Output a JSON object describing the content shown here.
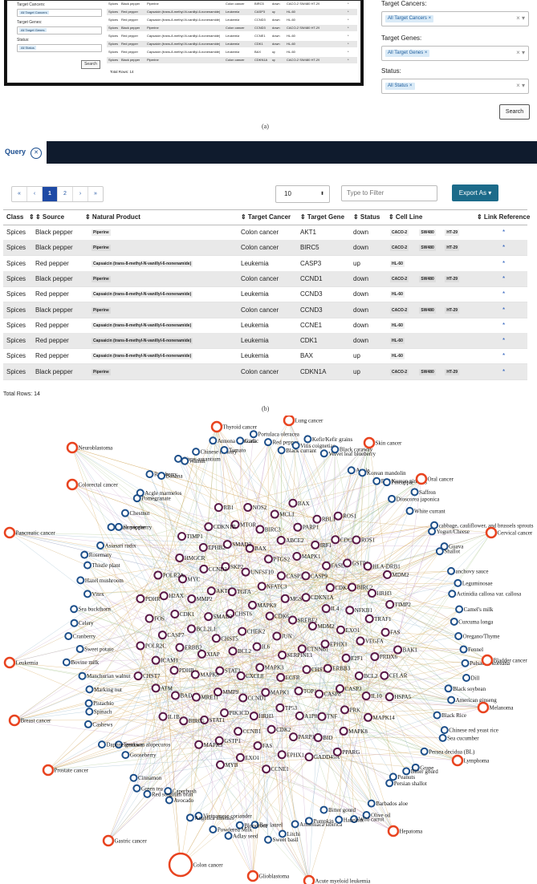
{
  "panel_a": {
    "mini_form": {
      "labels": [
        "Target Cancers:",
        "Target Genes:",
        "Status:"
      ],
      "chips": [
        "All Target Cancers",
        "All Target Genes",
        "All Status"
      ],
      "search": "Search"
    },
    "mini_rows": [
      [
        "Spices",
        "Black pepper",
        "Piperine",
        "Colon cancer",
        "BIRC5",
        "down",
        "CACO-2  SW480  HT-29"
      ],
      [
        "Spices",
        "Red pepper",
        "Capsaicin (trans-8-methyl-N-vanillyl-6-nonenamide)",
        "Leukemia",
        "CASP3",
        "up",
        "HL-60"
      ],
      [
        "Spices",
        "Red pepper",
        "Capsaicin (trans-8-methyl-N-vanillyl-6-nonenamide)",
        "Leukemia",
        "CCND3",
        "down",
        "HL-60"
      ],
      [
        "Spices",
        "Black pepper",
        "Piperine",
        "Colon cancer",
        "CCND3",
        "down",
        "CACO-2  SW480  HT-29"
      ],
      [
        "Spices",
        "Red pepper",
        "Capsaicin (trans-8-methyl-N-vanillyl-6-nonenamide)",
        "Leukemia",
        "CCNE1",
        "down",
        "HL-60"
      ],
      [
        "Spices",
        "Red pepper",
        "Capsaicin (trans-8-methyl-N-vanillyl-6-nonenamide)",
        "Leukemia",
        "CDK1",
        "down",
        "HL-60"
      ],
      [
        "Spices",
        "Red pepper",
        "Capsaicin (trans-8-methyl-N-vanillyl-6-nonenamide)",
        "Leukemia",
        "BAX",
        "up",
        "HL-60"
      ],
      [
        "Spices",
        "Black pepper",
        "Piperine",
        "Colon cancer",
        "CDKN1A",
        "up",
        "CACO-2  SW480  HT-29"
      ]
    ],
    "mini_total": "Total Rows: 14",
    "side_panel": {
      "target_cancers_label": "Target Cancers:",
      "target_cancers_chip": "All Target Cancers",
      "target_genes_label": "Target Genes:",
      "target_genes_chip": "All Target Genes",
      "status_label": "Status:",
      "status_chip": "All Status",
      "search_label": "Search"
    },
    "caption": "(a)"
  },
  "panel_b": {
    "tab_label": "Query",
    "pager": [
      "«",
      "‹",
      "1",
      "2",
      "›",
      "»"
    ],
    "page_size": "10",
    "filter_placeholder": "Type to Filter",
    "export_label": "Export As",
    "columns": [
      "Class",
      "Source",
      "Natural Product",
      "Target Cancer",
      "Target Gene",
      "Status",
      "Cell Line",
      "Link Reference"
    ],
    "rows": [
      {
        "class": "Spices",
        "source": "Black pepper",
        "product": "Piperine",
        "cancer": "Colon cancer",
        "gene": "AKT1",
        "status": "down",
        "cells": [
          "CACO-2",
          "SW480",
          "HT-29"
        ]
      },
      {
        "class": "Spices",
        "source": "Black pepper",
        "product": "Piperine",
        "cancer": "Colon cancer",
        "gene": "BIRC5",
        "status": "down",
        "cells": [
          "CACO-2",
          "SW480",
          "HT-29"
        ]
      },
      {
        "class": "Spices",
        "source": "Red pepper",
        "product": "Capsaicin (trans-8-methyl-N-vanillyl-6-nonenamide)",
        "cancer": "Leukemia",
        "gene": "CASP3",
        "status": "up",
        "cells": [
          "HL-60"
        ]
      },
      {
        "class": "Spices",
        "source": "Black pepper",
        "product": "Piperine",
        "cancer": "Colon cancer",
        "gene": "CCND1",
        "status": "down",
        "cells": [
          "CACO-2",
          "SW480",
          "HT-29"
        ]
      },
      {
        "class": "Spices",
        "source": "Red pepper",
        "product": "Capsaicin (trans-8-methyl-N-vanillyl-6-nonenamide)",
        "cancer": "Leukemia",
        "gene": "CCND3",
        "status": "down",
        "cells": [
          "HL-60"
        ]
      },
      {
        "class": "Spices",
        "source": "Black pepper",
        "product": "Piperine",
        "cancer": "Colon cancer",
        "gene": "CCND3",
        "status": "down",
        "cells": [
          "CACO-2",
          "SW480",
          "HT-29"
        ]
      },
      {
        "class": "Spices",
        "source": "Red pepper",
        "product": "Capsaicin (trans-8-methyl-N-vanillyl-6-nonenamide)",
        "cancer": "Leukemia",
        "gene": "CCNE1",
        "status": "down",
        "cells": [
          "HL-60"
        ]
      },
      {
        "class": "Spices",
        "source": "Red pepper",
        "product": "Capsaicin (trans-8-methyl-N-vanillyl-6-nonenamide)",
        "cancer": "Leukemia",
        "gene": "CDK1",
        "status": "down",
        "cells": [
          "HL-60"
        ]
      },
      {
        "class": "Spices",
        "source": "Red pepper",
        "product": "Capsaicin (trans-8-methyl-N-vanillyl-6-nonenamide)",
        "cancer": "Leukemia",
        "gene": "BAX",
        "status": "up",
        "cells": [
          "HL-60"
        ]
      },
      {
        "class": "Spices",
        "source": "Black pepper",
        "product": "Piperine",
        "cancer": "Colon cancer",
        "gene": "CDKN1A",
        "status": "up",
        "cells": [
          "CACO-2",
          "SW480",
          "HT-29"
        ]
      }
    ],
    "link_glyph": "*",
    "total_rows": "Total Rows: 14",
    "caption": "(b)"
  },
  "network": {
    "colors": {
      "cancer": "#e8431f",
      "source": "#1d4f8a",
      "gene": "#5a1a48"
    },
    "cancers": [
      "Neuroblastoma",
      "Thyroid cancer",
      "Lung cancer",
      "Skin cancer",
      "Oral cancer",
      "Colorectal cancer",
      "Pancreatic cancer",
      "Cervical cancer",
      "Leukemia",
      "Bladder cancer",
      "Breast cancer",
      "Melanoma",
      "Prostate cancer",
      "Lymphoma",
      "Gastric cancer",
      "Hepatoma",
      "Colon cancer",
      "Glioblastoma",
      "Acute myeloid leukemia"
    ],
    "sources": [
      "Red pepper",
      "Black currant",
      "Vitis coignetiae",
      "Kefir/Kefir grains",
      "Velvet leaf blueberry",
      "Black caraway",
      "Apple",
      "Korean mandolin",
      "Red Korean ginseng",
      "Pineapple",
      "Dioscorea japonica",
      "Saffron",
      "White currant",
      "cabbage, cauliflower, and brussels sprouts",
      "Yogurt/Cheese",
      "Guava",
      "Shallot",
      "anchovy sauce",
      "Leguminosae",
      "Actinidia callosa var. callosa",
      "Camel's milk",
      "Curcuma longa",
      "Oregano/Thyme",
      "Fennel",
      "Pulsatilla koreana",
      "Dill",
      "Black soybean",
      "American ginseng",
      "Black Rice",
      "Chinese red yeast rice",
      "Sea cucumber",
      "Persea decidua (BL)",
      "Grape",
      "Bitter gourd",
      "Peanuts",
      "Persian shallot",
      "Barbados aloe",
      "Olive oil",
      "Wild carrot",
      "Hazelnut",
      "Bitter gourd",
      "Pumpkin",
      "Armeniaca sibirica",
      "Litchi",
      "Sweet basil",
      "Bay laurel",
      "Bloodroot",
      "Adlay seed",
      "Powdered Milk",
      "Vietnamese coriander",
      "Angelica sinensis",
      "Avocado",
      "Caperbush",
      "Red sorghum bran",
      "Green tea",
      "Cinnamon",
      "Gooseberry",
      "Teucrium alopecuros",
      "Daphne genkwa",
      "Cashews",
      "Spinach",
      "Pistachio",
      "Marking nut",
      "Manchurian walnut",
      "Bovine milk",
      "Sweet potato",
      "Cranberry",
      "Celery",
      "Sea buckthorn",
      "Vitex",
      "Hazel mushroom",
      "Thistle plant",
      "Rosemary",
      "Asiasari radix",
      "Black pepper",
      "Serviceberry",
      "Chestnut",
      "Pomegranate",
      "Acgle marmelos",
      "Raspberry",
      "Banana",
      "Citrus aurantium",
      "Walnut",
      "Chinese hickory",
      "Annona muricata",
      "Tomato",
      "Garlic",
      "Portulaca oleracea"
    ],
    "genes": [
      "JUN",
      "IL6",
      "CDK6",
      "SERPINE1",
      "CHEK2",
      "SREBF2",
      "MAPK3",
      "MAPK9",
      "CTNNB1",
      "BCL2",
      "MGST2",
      "EGFR",
      "CHST6",
      "MDM2",
      "CXCL8",
      "NFATC3",
      "CHST7",
      "CHST5",
      "CDKN1A",
      "MAPK1",
      "TGFA",
      "EPHX1",
      "STAT3",
      "CASP3",
      "TOP1",
      "SMAD2",
      "IL4",
      "CCND1",
      "UNFSF10",
      "ERBB3",
      "XIAP",
      "CASP9",
      "TP53",
      "AKT1",
      "EXO1",
      "MMP9",
      "PTGS2",
      "CASP8",
      "BCL2L1",
      "CDK4",
      "HRH3",
      "SKP2",
      "E2F1",
      "MAPK8",
      "MAPK1",
      "A1P8A2",
      "MMP2",
      "NFKB1",
      "PIK3CD",
      "BAX",
      "CASP3",
      "ERBB2",
      "FASLG",
      "CDK2",
      "CCND3",
      "VEGFA",
      "MRE11",
      "ABCE2",
      "TNF",
      "CDK1",
      "BIRC2",
      "CCNB1",
      "SMAD3",
      "BCL2",
      "PDHB",
      "IRF1",
      "PARP1",
      "MYC",
      "TRAF1",
      "STAT1",
      "BIRC3",
      "PRK",
      "CASP7",
      "GSTP1",
      "FAS",
      "EPHB2",
      "PRDX6",
      "BAD",
      "PARP1",
      "BID",
      "H2AX",
      "HRH3",
      "GSTP1",
      "MTOR",
      "IL10",
      "ICAM1",
      "CDC25C",
      "EPHX1",
      "HMGCR",
      "FAS",
      "BIRC5",
      "MCL1",
      "MAPK8",
      "FOS",
      "HLA-DRB1",
      "EXO1",
      "CDKN1B",
      "CFLAR",
      "ATM",
      "RBL1",
      "GADD45A",
      "POLR2A",
      "TIMP2",
      "MAPK3",
      "NOS2",
      "MAPK14",
      "POLR2C",
      "ROS1",
      "CCNE1",
      "TIMP1",
      "BAK1",
      "IL1B",
      "BAX",
      "PPARG",
      "PDHR",
      "MDM2",
      "MYB",
      "RB1",
      "HSPA5",
      "CHST7",
      "ROS1"
    ],
    "caption": "(c)"
  }
}
